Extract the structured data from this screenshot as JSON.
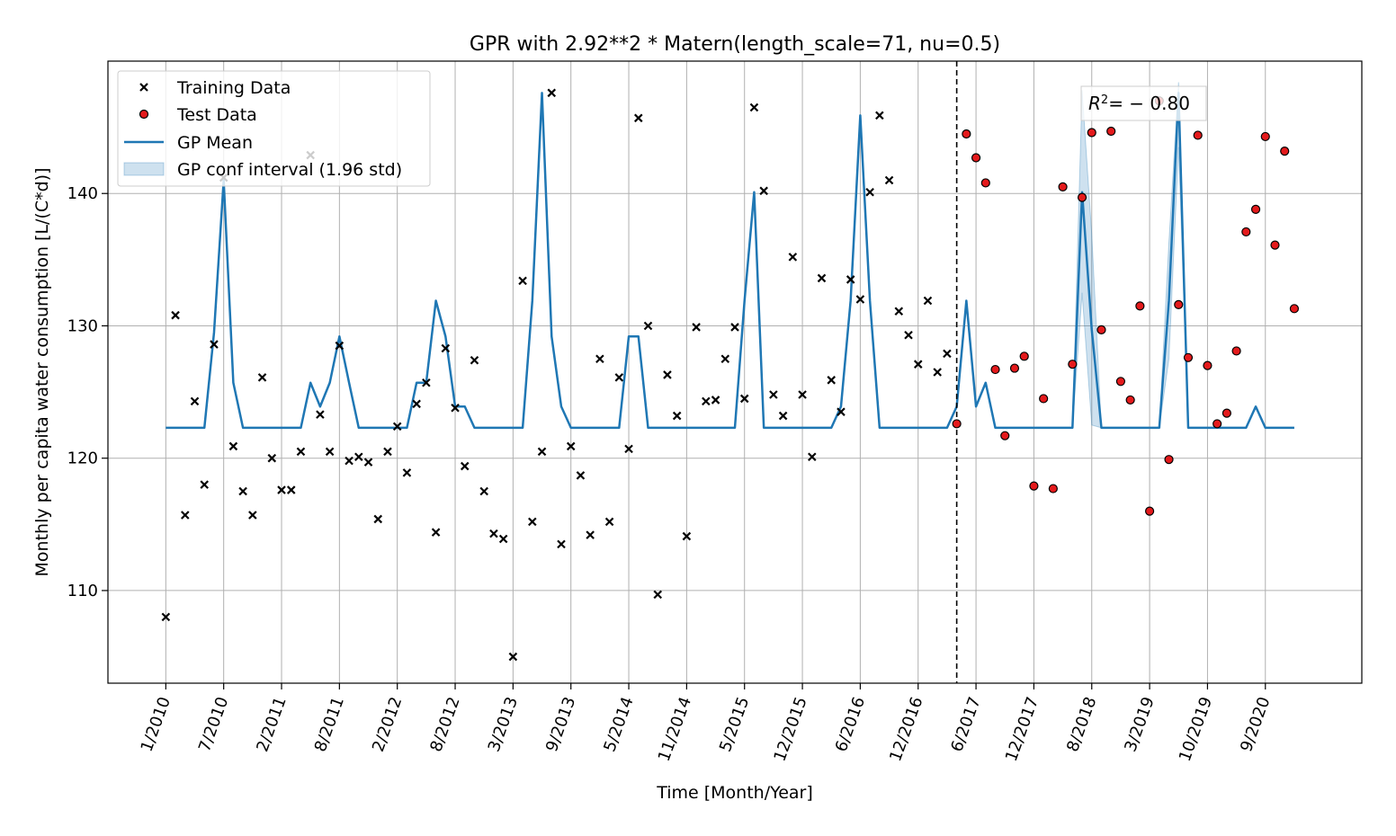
{
  "chart_data": {
    "type": "scatter",
    "title": "GPR with 2.92**2 * Matern(length_scale=71, nu=0.5)",
    "xlabel": "Time [Month/Year]",
    "ylabel": "Monthly per capita water consumption [L/(C*d)]",
    "ylim": [
      103,
      150
    ],
    "yticks": [
      110,
      120,
      130,
      140
    ],
    "x_range": [
      -6,
      124
    ],
    "xticks": [
      {
        "x": 0,
        "label": "1/2010"
      },
      {
        "x": 6,
        "label": "7/2010"
      },
      {
        "x": 12,
        "label": "2/2011"
      },
      {
        "x": 18,
        "label": "8/2011"
      },
      {
        "x": 24,
        "label": "2/2012"
      },
      {
        "x": 30,
        "label": "8/2012"
      },
      {
        "x": 36,
        "label": "3/2013"
      },
      {
        "x": 42,
        "label": "9/2013"
      },
      {
        "x": 48,
        "label": "5/2014"
      },
      {
        "x": 54,
        "label": "11/2014"
      },
      {
        "x": 60,
        "label": "5/2015"
      },
      {
        "x": 66,
        "label": "12/2015"
      },
      {
        "x": 72,
        "label": "6/2016"
      },
      {
        "x": 78,
        "label": "12/2016"
      },
      {
        "x": 84,
        "label": "6/2017"
      },
      {
        "x": 90,
        "label": "12/2017"
      },
      {
        "x": 96,
        "label": "8/2018"
      },
      {
        "x": 102,
        "label": "3/2019"
      },
      {
        "x": 108,
        "label": "10/2019"
      },
      {
        "x": 114,
        "label": "9/2020"
      }
    ],
    "grid": true,
    "legend_position": "top-left",
    "legend": [
      {
        "label": "Training Data",
        "kind": "cross"
      },
      {
        "label": "Test Data",
        "kind": "dot"
      },
      {
        "label": "GP Mean",
        "kind": "line"
      },
      {
        "label": "GP conf interval (1.96 std)",
        "kind": "band"
      }
    ],
    "split_x": 82,
    "annotation": {
      "r2_text": "= − 0.80"
    },
    "colors": {
      "mean": "#1f77b4",
      "band": "#1f77b4",
      "test_fill": "#e41a1c",
      "grid": "#b0b0b0"
    },
    "training": [
      [
        0,
        108.0
      ],
      [
        1,
        130.8
      ],
      [
        2,
        115.7
      ],
      [
        3,
        124.3
      ],
      [
        4,
        118.0
      ],
      [
        5,
        128.6
      ],
      [
        6,
        141.2
      ],
      [
        7,
        120.9
      ],
      [
        8,
        117.5
      ],
      [
        9,
        115.7
      ],
      [
        10,
        126.1
      ],
      [
        11,
        120.0
      ],
      [
        12,
        117.6
      ],
      [
        13,
        117.6
      ],
      [
        14,
        120.5
      ],
      [
        15,
        142.9
      ],
      [
        16,
        123.3
      ],
      [
        17,
        120.5
      ],
      [
        18,
        128.5
      ],
      [
        19,
        119.8
      ],
      [
        20,
        120.1
      ],
      [
        21,
        119.7
      ],
      [
        22,
        115.4
      ],
      [
        23,
        120.5
      ],
      [
        24,
        122.4
      ],
      [
        25,
        118.9
      ],
      [
        26,
        124.1
      ],
      [
        27,
        125.7
      ],
      [
        28,
        114.4
      ],
      [
        29,
        128.3
      ],
      [
        30,
        123.8
      ],
      [
        31,
        119.4
      ],
      [
        32,
        127.4
      ],
      [
        33,
        117.5
      ],
      [
        34,
        114.3
      ],
      [
        35,
        113.9
      ],
      [
        36,
        105.0
      ],
      [
        37,
        133.4
      ],
      [
        38,
        115.2
      ],
      [
        39,
        120.5
      ],
      [
        40,
        147.6
      ],
      [
        41,
        113.5
      ],
      [
        42,
        120.9
      ],
      [
        43,
        118.7
      ],
      [
        44,
        114.2
      ],
      [
        45,
        127.5
      ],
      [
        46,
        115.2
      ],
      [
        47,
        126.1
      ],
      [
        48,
        120.7
      ],
      [
        49,
        145.7
      ],
      [
        50,
        130.0
      ],
      [
        51,
        109.7
      ],
      [
        52,
        126.3
      ],
      [
        53,
        123.2
      ],
      [
        54,
        114.1
      ],
      [
        55,
        129.9
      ],
      [
        56,
        124.3
      ],
      [
        57,
        124.4
      ],
      [
        58,
        127.5
      ],
      [
        59,
        129.9
      ],
      [
        60,
        124.5
      ],
      [
        61,
        146.5
      ],
      [
        62,
        140.2
      ],
      [
        63,
        124.8
      ],
      [
        64,
        123.2
      ],
      [
        65,
        135.2
      ],
      [
        66,
        124.8
      ],
      [
        67,
        120.1
      ],
      [
        68,
        133.6
      ],
      [
        69,
        125.9
      ],
      [
        70,
        123.5
      ],
      [
        71,
        133.5
      ],
      [
        72,
        132.0
      ],
      [
        73,
        140.1
      ],
      [
        74,
        145.9
      ],
      [
        75,
        141.0
      ],
      [
        76,
        131.1
      ],
      [
        77,
        129.3
      ],
      [
        78,
        127.1
      ],
      [
        79,
        131.9
      ],
      [
        80,
        126.5
      ],
      [
        81,
        127.9
      ]
    ],
    "test": [
      [
        82,
        122.6
      ],
      [
        83,
        144.5
      ],
      [
        84,
        142.7
      ],
      [
        85,
        140.8
      ],
      [
        86,
        126.7
      ],
      [
        87,
        121.7
      ],
      [
        88,
        126.8
      ],
      [
        89,
        127.7
      ],
      [
        90,
        117.9
      ],
      [
        91,
        124.5
      ],
      [
        92,
        117.7
      ],
      [
        93,
        140.5
      ],
      [
        94,
        127.1
      ],
      [
        95,
        139.7
      ],
      [
        96,
        144.6
      ],
      [
        97,
        129.7
      ],
      [
        98,
        144.7
      ],
      [
        99,
        125.8
      ],
      [
        100,
        124.4
      ],
      [
        101,
        131.5
      ],
      [
        102,
        116.0
      ],
      [
        103,
        147.0
      ],
      [
        104,
        119.9
      ],
      [
        105,
        131.6
      ],
      [
        106,
        127.6
      ],
      [
        107,
        144.4
      ],
      [
        108,
        127.0
      ],
      [
        109,
        122.6
      ],
      [
        110,
        123.4
      ],
      [
        111,
        128.1
      ],
      [
        112,
        137.1
      ],
      [
        113,
        138.8
      ],
      [
        114,
        144.3
      ],
      [
        115,
        136.1
      ],
      [
        116,
        143.2
      ],
      [
        117,
        131.3
      ]
    ],
    "gp_mean": [
      [
        0,
        122.3
      ],
      [
        1,
        122.3
      ],
      [
        2,
        122.3
      ],
      [
        3,
        122.3
      ],
      [
        4,
        122.3
      ],
      [
        5,
        129.5
      ],
      [
        6,
        141.0
      ],
      [
        7,
        125.7
      ],
      [
        8,
        122.3
      ],
      [
        9,
        122.3
      ],
      [
        10,
        122.3
      ],
      [
        11,
        122.3
      ],
      [
        12,
        122.3
      ],
      [
        13,
        122.3
      ],
      [
        14,
        122.3
      ],
      [
        15,
        125.7
      ],
      [
        16,
        123.9
      ],
      [
        17,
        125.7
      ],
      [
        18,
        129.2
      ],
      [
        19,
        125.7
      ],
      [
        20,
        122.3
      ],
      [
        21,
        122.3
      ],
      [
        22,
        122.3
      ],
      [
        23,
        122.3
      ],
      [
        24,
        122.3
      ],
      [
        25,
        122.3
      ],
      [
        26,
        125.7
      ],
      [
        27,
        125.7
      ],
      [
        28,
        131.9
      ],
      [
        29,
        129.2
      ],
      [
        30,
        123.9
      ],
      [
        31,
        123.9
      ],
      [
        32,
        122.3
      ],
      [
        33,
        122.3
      ],
      [
        34,
        122.3
      ],
      [
        35,
        122.3
      ],
      [
        36,
        122.3
      ],
      [
        37,
        122.3
      ],
      [
        38,
        131.9
      ],
      [
        39,
        147.6
      ],
      [
        40,
        129.2
      ],
      [
        41,
        123.9
      ],
      [
        42,
        122.3
      ],
      [
        43,
        122.3
      ],
      [
        44,
        122.3
      ],
      [
        45,
        122.3
      ],
      [
        46,
        122.3
      ],
      [
        47,
        122.3
      ],
      [
        48,
        129.2
      ],
      [
        49,
        129.2
      ],
      [
        50,
        122.3
      ],
      [
        51,
        122.3
      ],
      [
        52,
        122.3
      ],
      [
        53,
        122.3
      ],
      [
        54,
        122.3
      ],
      [
        55,
        122.3
      ],
      [
        56,
        122.3
      ],
      [
        57,
        122.3
      ],
      [
        58,
        122.3
      ],
      [
        59,
        122.3
      ],
      [
        60,
        131.9
      ],
      [
        61,
        140.1
      ],
      [
        62,
        122.3
      ],
      [
        63,
        122.3
      ],
      [
        64,
        122.3
      ],
      [
        65,
        122.3
      ],
      [
        66,
        122.3
      ],
      [
        67,
        122.3
      ],
      [
        68,
        122.3
      ],
      [
        69,
        122.3
      ],
      [
        70,
        123.9
      ],
      [
        71,
        131.9
      ],
      [
        72,
        145.9
      ],
      [
        73,
        131.9
      ],
      [
        74,
        122.3
      ],
      [
        75,
        122.3
      ],
      [
        76,
        122.3
      ],
      [
        77,
        122.3
      ],
      [
        78,
        122.3
      ],
      [
        79,
        122.3
      ],
      [
        80,
        122.3
      ],
      [
        81,
        122.3
      ],
      [
        82,
        123.9
      ],
      [
        83,
        131.9
      ],
      [
        84,
        123.9
      ],
      [
        85,
        125.7
      ],
      [
        86,
        122.3
      ],
      [
        87,
        122.3
      ],
      [
        88,
        122.3
      ],
      [
        89,
        122.3
      ],
      [
        90,
        122.3
      ],
      [
        91,
        122.3
      ],
      [
        92,
        122.3
      ],
      [
        93,
        122.3
      ],
      [
        94,
        122.3
      ],
      [
        95,
        140.1
      ],
      [
        96,
        129.7
      ],
      [
        97,
        122.3
      ],
      [
        98,
        122.3
      ],
      [
        99,
        122.3
      ],
      [
        100,
        122.3
      ],
      [
        101,
        122.3
      ],
      [
        102,
        122.3
      ],
      [
        103,
        122.3
      ],
      [
        104,
        131.9
      ],
      [
        105,
        147.6
      ],
      [
        106,
        122.3
      ],
      [
        107,
        122.3
      ],
      [
        108,
        122.3
      ],
      [
        109,
        122.3
      ],
      [
        110,
        122.3
      ],
      [
        111,
        122.3
      ],
      [
        112,
        122.3
      ],
      [
        113,
        123.9
      ],
      [
        114,
        122.3
      ],
      [
        115,
        122.3
      ],
      [
        116,
        122.3
      ],
      [
        117,
        122.3
      ]
    ],
    "conf_band": [
      {
        "x": 94,
        "lower": 122.3,
        "upper": 122.3
      },
      {
        "x": 95,
        "lower": 132.5,
        "upper": 147.8
      },
      {
        "x": 96,
        "lower": 122.5,
        "upper": 136.9
      },
      {
        "x": 97,
        "lower": 122.3,
        "upper": 122.3
      },
      {
        "x": 103,
        "lower": 122.3,
        "upper": 122.3
      },
      {
        "x": 104,
        "lower": 127.5,
        "upper": 136.3
      },
      {
        "x": 105,
        "lower": 143.5,
        "upper": 148.4
      },
      {
        "x": 106,
        "lower": 122.3,
        "upper": 122.3
      }
    ]
  }
}
